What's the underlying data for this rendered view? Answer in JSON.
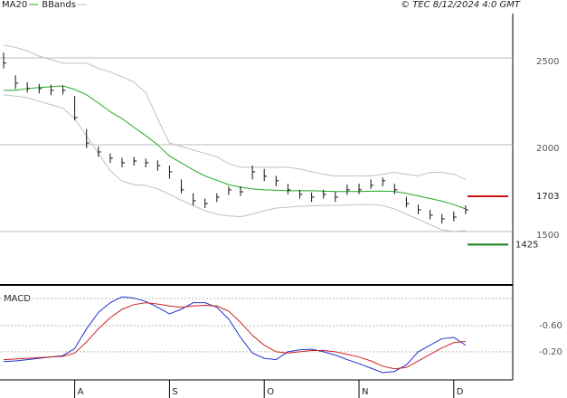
{
  "copyright": "© TEC 8/12/2024 4:0 GMT",
  "chart_data": [
    {
      "type": "ohlc",
      "ylim": [
        2755,
        1208
      ],
      "yticks": [
        2500,
        2000,
        1500
      ],
      "grid": true,
      "high": [
        2530,
        2400,
        2360,
        2350,
        2345,
        2340,
        2280,
        2090,
        1990,
        1950,
        1925,
        1930,
        1920,
        1910,
        1880,
        1800,
        1720,
        1690,
        1720,
        1760,
        1760,
        1880,
        1860,
        1820,
        1775,
        1740,
        1725,
        1740,
        1730,
        1770,
        1775,
        1800,
        1810,
        1775,
        1700,
        1655,
        1625,
        1600,
        1615,
        1650
      ],
      "low": [
        2440,
        2320,
        2300,
        2295,
        2285,
        2290,
        2140,
        1980,
        1930,
        1895,
        1870,
        1880,
        1870,
        1850,
        1805,
        1720,
        1650,
        1635,
        1670,
        1710,
        1705,
        1800,
        1790,
        1760,
        1715,
        1690,
        1670,
        1690,
        1670,
        1710,
        1715,
        1745,
        1760,
        1715,
        1640,
        1600,
        1570,
        1545,
        1560,
        1600
      ],
      "close": [
        2470,
        2354,
        2323,
        2323,
        2313,
        2313,
        2156,
        2010,
        1958,
        1922,
        1896,
        1906,
        1896,
        1880,
        1844,
        1740,
        1677,
        1661,
        1698,
        1740,
        1729,
        1844,
        1818,
        1792,
        1740,
        1714,
        1698,
        1714,
        1698,
        1740,
        1740,
        1766,
        1792,
        1740,
        1661,
        1625,
        1594,
        1573,
        1583,
        1625
      ],
      "bar_color": "#111111",
      "series": [
        {
          "name": "MA20",
          "color": "#22aa22",
          "values": [
            2313,
            2313,
            2323,
            2329,
            2334,
            2339,
            2318,
            2287,
            2240,
            2190,
            2150,
            2100,
            2052,
            2000,
            1935,
            1895,
            1855,
            1820,
            1795,
            1770,
            1755,
            1745,
            1740,
            1738,
            1735,
            1735,
            1735,
            1733,
            1730,
            1730,
            1730,
            1732,
            1733,
            1730,
            1720,
            1705,
            1690,
            1675,
            1655,
            1630
          ]
        },
        {
          "name": "BBands",
          "color": "#c0c0c0",
          "upper": [
            2573,
            2560,
            2540,
            2510,
            2490,
            2469,
            2469,
            2469,
            2440,
            2420,
            2390,
            2360,
            2300,
            2150,
            2010,
            1990,
            1970,
            1950,
            1930,
            1890,
            1870,
            1870,
            1870,
            1870,
            1870,
            1860,
            1845,
            1830,
            1820,
            1820,
            1820,
            1820,
            1830,
            1840,
            1830,
            1820,
            1840,
            1840,
            1830,
            1800
          ],
          "lower": [
            2287,
            2280,
            2270,
            2250,
            2230,
            2210,
            2150,
            2050,
            1950,
            1850,
            1790,
            1770,
            1765,
            1745,
            1715,
            1680,
            1650,
            1620,
            1600,
            1590,
            1585,
            1600,
            1620,
            1635,
            1640,
            1645,
            1648,
            1650,
            1650,
            1652,
            1655,
            1655,
            1650,
            1630,
            1600,
            1570,
            1540,
            1510,
            1500,
            1505
          ]
        }
      ],
      "levels": [
        {
          "value": 1703,
          "color": "#d01010"
        },
        {
          "value": 1425,
          "color": "#108010"
        }
      ]
    },
    {
      "type": "line",
      "title": "MACD",
      "ylim": [
        -1.18,
        0.23
      ],
      "yticks": [
        {
          "value": -0.2,
          "label": "-0.20"
        },
        {
          "value": -0.6,
          "label": "-0.60"
        }
      ],
      "categories": [
        null,
        null,
        null,
        null,
        null,
        null,
        "A",
        null,
        null,
        null,
        null,
        null,
        null,
        null,
        "S",
        null,
        null,
        null,
        null,
        null,
        null,
        null,
        "O",
        null,
        null,
        null,
        null,
        null,
        null,
        null,
        "N",
        null,
        null,
        null,
        null,
        null,
        null,
        null,
        "D",
        null
      ],
      "series": [
        {
          "color": "#2233cc",
          "values": [
            -0.05,
            -0.06,
            -0.08,
            -0.1,
            -0.12,
            -0.14,
            -0.25,
            -0.55,
            -0.8,
            -0.95,
            -1.04,
            -1.02,
            -0.97,
            -0.88,
            -0.78,
            -0.85,
            -0.95,
            -0.95,
            -0.88,
            -0.7,
            -0.42,
            -0.18,
            -0.1,
            -0.08,
            -0.2,
            -0.23,
            -0.24,
            -0.2,
            -0.15,
            -0.08,
            -0.02,
            0.05,
            0.12,
            0.1,
            0.0,
            -0.2,
            -0.3,
            -0.4,
            -0.42,
            -0.3
          ]
        },
        {
          "color": "#cc2222",
          "values": [
            -0.08,
            -0.09,
            -0.1,
            -0.11,
            -0.12,
            -0.13,
            -0.18,
            -0.35,
            -0.55,
            -0.72,
            -0.85,
            -0.92,
            -0.95,
            -0.93,
            -0.9,
            -0.88,
            -0.9,
            -0.91,
            -0.9,
            -0.82,
            -0.65,
            -0.45,
            -0.3,
            -0.2,
            -0.18,
            -0.2,
            -0.22,
            -0.22,
            -0.2,
            -0.16,
            -0.12,
            -0.06,
            0.02,
            0.06,
            0.04,
            -0.06,
            -0.16,
            -0.26,
            -0.34,
            -0.36
          ]
        }
      ]
    }
  ]
}
